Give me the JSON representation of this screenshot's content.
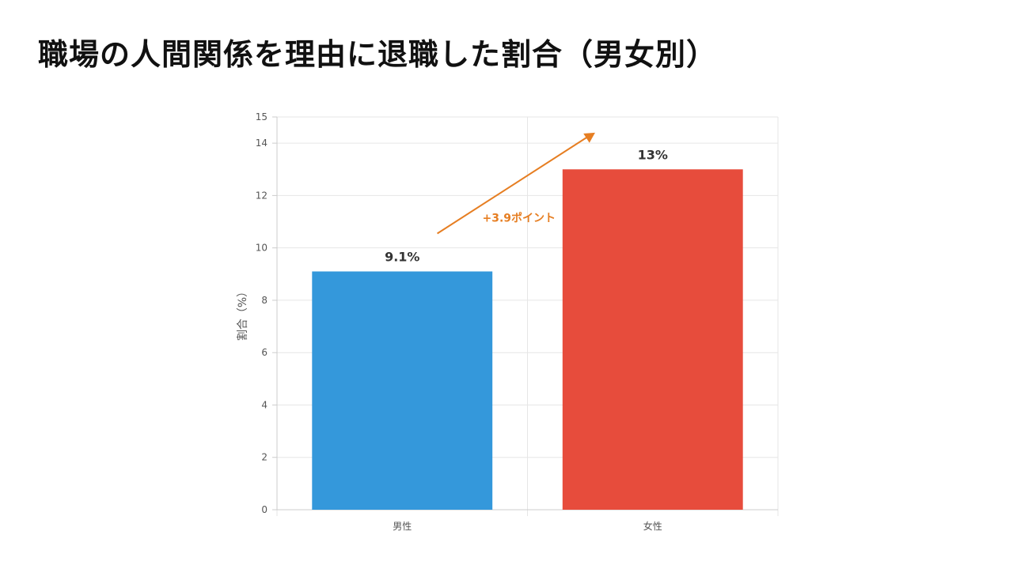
{
  "page": {
    "title": "職場の人間関係を理由に退職した割合（男女別）"
  },
  "chart_data": {
    "type": "bar",
    "title": "",
    "categories": [
      "男性",
      "女性"
    ],
    "values": [
      9.1,
      13
    ],
    "value_labels": [
      "9.1%",
      "13%"
    ],
    "colors": [
      "#3498db",
      "#e74c3c"
    ],
    "xlabel": "",
    "ylabel": "割合（%）",
    "ylim": [
      0,
      15
    ],
    "yticks": [
      0,
      2,
      4,
      6,
      8,
      10,
      12,
      14,
      15
    ],
    "grid": true,
    "annotation": {
      "text": "+3.9ポイント",
      "color": "#e67e22",
      "arrow": "up-right"
    }
  }
}
